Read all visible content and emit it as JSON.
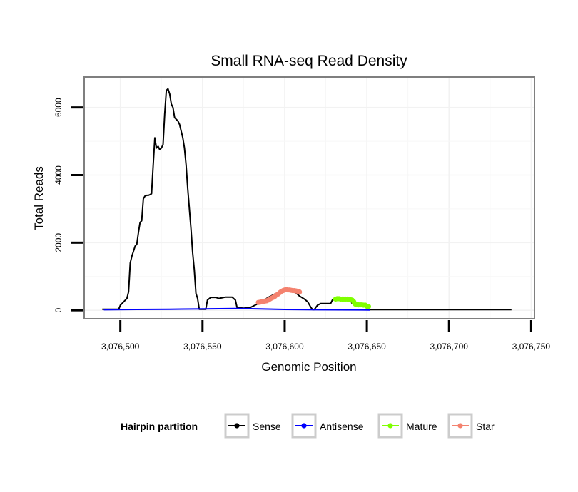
{
  "chart_data": {
    "type": "line",
    "title": "Small RNA-seq Read Density",
    "xlabel": "Genomic Position",
    "ylabel": "Total Reads",
    "xlim": [
      3076478,
      3076752
    ],
    "ylim": [
      -250,
      6900
    ],
    "xticks": [
      3076500,
      3076550,
      3076600,
      3076650,
      3076700,
      3076750
    ],
    "xtick_labels": [
      "3,076,500",
      "3,076,550",
      "3,076,600",
      "3,076,650",
      "3,076,700",
      "3,076,750"
    ],
    "yticks": [
      0,
      2000,
      4000,
      6000
    ],
    "ytick_labels": [
      "0",
      "2000",
      "4000",
      "6000"
    ],
    "grid": true,
    "legend": {
      "title": "Hairpin partition",
      "position": "bottom",
      "entries": [
        "Sense",
        "Antisense",
        "Mature",
        "Star"
      ]
    },
    "series": [
      {
        "name": "Sense",
        "color": "#000000",
        "style": "line",
        "points": [
          [
            3076489,
            30
          ],
          [
            3076499,
            30
          ],
          [
            3076500,
            150
          ],
          [
            3076502,
            250
          ],
          [
            3076504,
            350
          ],
          [
            3076505,
            550
          ],
          [
            3076506,
            1400
          ],
          [
            3076507,
            1600
          ],
          [
            3076509,
            1900
          ],
          [
            3076510,
            1950
          ],
          [
            3076511,
            2300
          ],
          [
            3076512,
            2600
          ],
          [
            3076513,
            2650
          ],
          [
            3076514,
            3300
          ],
          [
            3076515,
            3380
          ],
          [
            3076516,
            3400
          ],
          [
            3076517,
            3400
          ],
          [
            3076518,
            3420
          ],
          [
            3076519,
            3450
          ],
          [
            3076520,
            4300
          ],
          [
            3076521,
            5100
          ],
          [
            3076522,
            4800
          ],
          [
            3076523,
            4850
          ],
          [
            3076524,
            4750
          ],
          [
            3076525,
            4800
          ],
          [
            3076526,
            4900
          ],
          [
            3076527,
            5800
          ],
          [
            3076528,
            6500
          ],
          [
            3076529,
            6550
          ],
          [
            3076530,
            6400
          ],
          [
            3076531,
            6100
          ],
          [
            3076532,
            6000
          ],
          [
            3076533,
            5700
          ],
          [
            3076534,
            5650
          ],
          [
            3076535,
            5600
          ],
          [
            3076536,
            5500
          ],
          [
            3076537,
            5300
          ],
          [
            3076538,
            5100
          ],
          [
            3076539,
            4800
          ],
          [
            3076540,
            4300
          ],
          [
            3076541,
            3600
          ],
          [
            3076542,
            3000
          ],
          [
            3076543,
            2400
          ],
          [
            3076544,
            1700
          ],
          [
            3076545,
            1200
          ],
          [
            3076546,
            500
          ],
          [
            3076547,
            350
          ],
          [
            3076548,
            30
          ],
          [
            3076552,
            30
          ],
          [
            3076553,
            300
          ],
          [
            3076555,
            380
          ],
          [
            3076558,
            380
          ],
          [
            3076560,
            350
          ],
          [
            3076562,
            370
          ],
          [
            3076564,
            390
          ],
          [
            3076568,
            390
          ],
          [
            3076570,
            300
          ],
          [
            3076571,
            80
          ],
          [
            3076575,
            60
          ],
          [
            3076579,
            80
          ],
          [
            3076582,
            150
          ],
          [
            3076586,
            250
          ],
          [
            3076590,
            380
          ],
          [
            3076594,
            480
          ],
          [
            3076598,
            560
          ],
          [
            3076602,
            580
          ],
          [
            3076606,
            550
          ],
          [
            3076609,
            420
          ],
          [
            3076612,
            330
          ],
          [
            3076614,
            250
          ],
          [
            3076616,
            80
          ],
          [
            3076617,
            20
          ],
          [
            3076618,
            20
          ],
          [
            3076620,
            150
          ],
          [
            3076622,
            200
          ],
          [
            3076628,
            200
          ],
          [
            3076629,
            300
          ],
          [
            3076630,
            310
          ],
          [
            3076640,
            310
          ],
          [
            3076641,
            200
          ],
          [
            3076643,
            150
          ],
          [
            3076648,
            140
          ],
          [
            3076650,
            60
          ],
          [
            3076651,
            20
          ],
          [
            3076738,
            20
          ]
        ]
      },
      {
        "name": "Antisense",
        "color": "#0000ff",
        "style": "line",
        "points": [
          [
            3076490,
            15
          ],
          [
            3076510,
            25
          ],
          [
            3076530,
            30
          ],
          [
            3076550,
            40
          ],
          [
            3076570,
            50
          ],
          [
            3076580,
            45
          ],
          [
            3076600,
            25
          ],
          [
            3076620,
            15
          ],
          [
            3076652,
            10
          ]
        ]
      },
      {
        "name": "Mature",
        "color": "#7fff00",
        "style": "points",
        "points": [
          [
            3076631,
            330
          ],
          [
            3076632,
            340
          ],
          [
            3076633,
            340
          ],
          [
            3076634,
            330
          ],
          [
            3076635,
            330
          ],
          [
            3076636,
            330
          ],
          [
            3076637,
            330
          ],
          [
            3076638,
            330
          ],
          [
            3076639,
            320
          ],
          [
            3076640,
            310
          ],
          [
            3076641,
            300
          ],
          [
            3076642,
            250
          ],
          [
            3076643,
            180
          ],
          [
            3076644,
            170
          ],
          [
            3076645,
            160
          ],
          [
            3076646,
            160
          ],
          [
            3076647,
            160
          ],
          [
            3076648,
            150
          ],
          [
            3076649,
            150
          ],
          [
            3076650,
            120
          ],
          [
            3076651,
            110
          ]
        ]
      },
      {
        "name": "Star",
        "color": "#f4826f",
        "style": "points",
        "points": [
          [
            3076584,
            230
          ],
          [
            3076585,
            240
          ],
          [
            3076586,
            250
          ],
          [
            3076587,
            260
          ],
          [
            3076588,
            270
          ],
          [
            3076589,
            280
          ],
          [
            3076590,
            300
          ],
          [
            3076591,
            330
          ],
          [
            3076592,
            360
          ],
          [
            3076593,
            380
          ],
          [
            3076594,
            410
          ],
          [
            3076595,
            450
          ],
          [
            3076596,
            480
          ],
          [
            3076597,
            520
          ],
          [
            3076598,
            560
          ],
          [
            3076599,
            580
          ],
          [
            3076600,
            600
          ],
          [
            3076601,
            610
          ],
          [
            3076602,
            600
          ],
          [
            3076603,
            600
          ],
          [
            3076604,
            590
          ],
          [
            3076605,
            580
          ],
          [
            3076606,
            580
          ],
          [
            3076607,
            570
          ],
          [
            3076608,
            560
          ],
          [
            3076609,
            540
          ]
        ]
      }
    ]
  }
}
